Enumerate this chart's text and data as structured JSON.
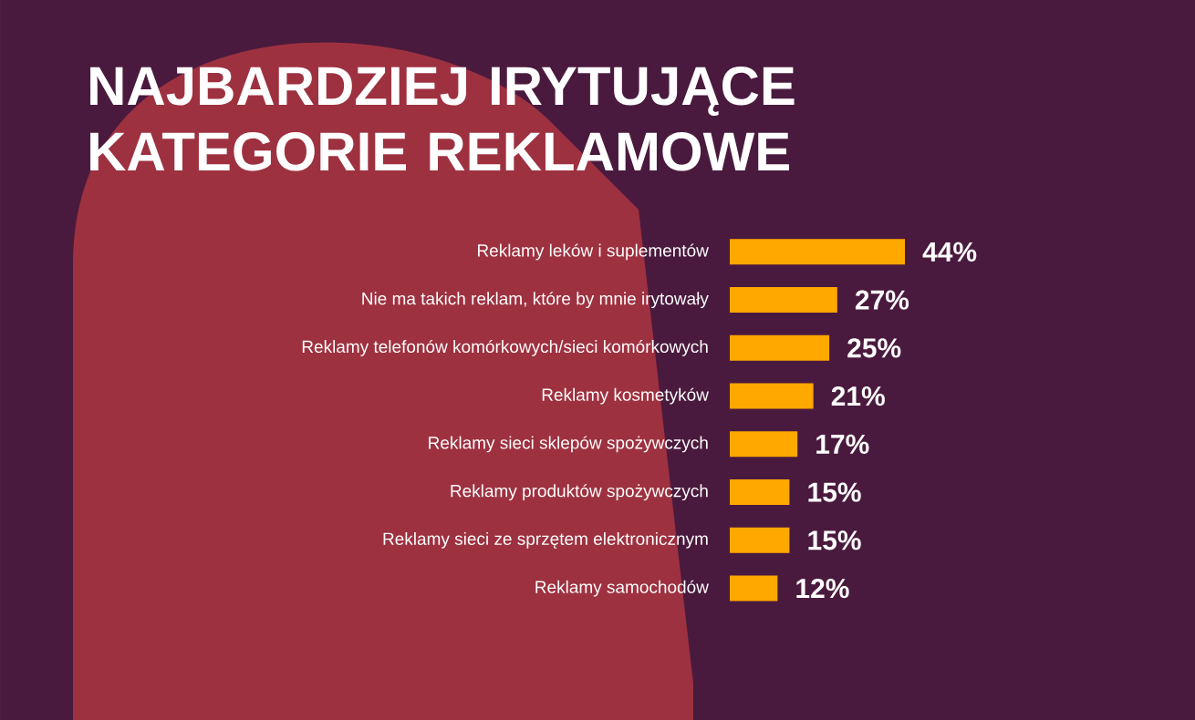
{
  "chart_data": {
    "type": "bar",
    "orientation": "horizontal",
    "title": "NAJBARDZIEJ IRYTUJĄCE KATEGORIE REKLAMOWE",
    "categories": [
      "Reklamy leków i suplementów",
      "Nie ma takich reklam, które by mnie irytowały",
      "Reklamy telefonów komórkowych/sieci komórkowych",
      "Reklamy kosmetyków",
      "Reklamy sieci sklepów spożywczych",
      "Reklamy produktów spożywczych",
      "Reklamy sieci ze sprzętem elektronicznym",
      "Reklamy samochodów"
    ],
    "values": [
      44,
      27,
      25,
      21,
      17,
      15,
      15,
      12
    ],
    "value_labels": [
      "44%",
      "27%",
      "25%",
      "21%",
      "17%",
      "15%",
      "15%",
      "12%"
    ],
    "color": "#ffa800"
  }
}
